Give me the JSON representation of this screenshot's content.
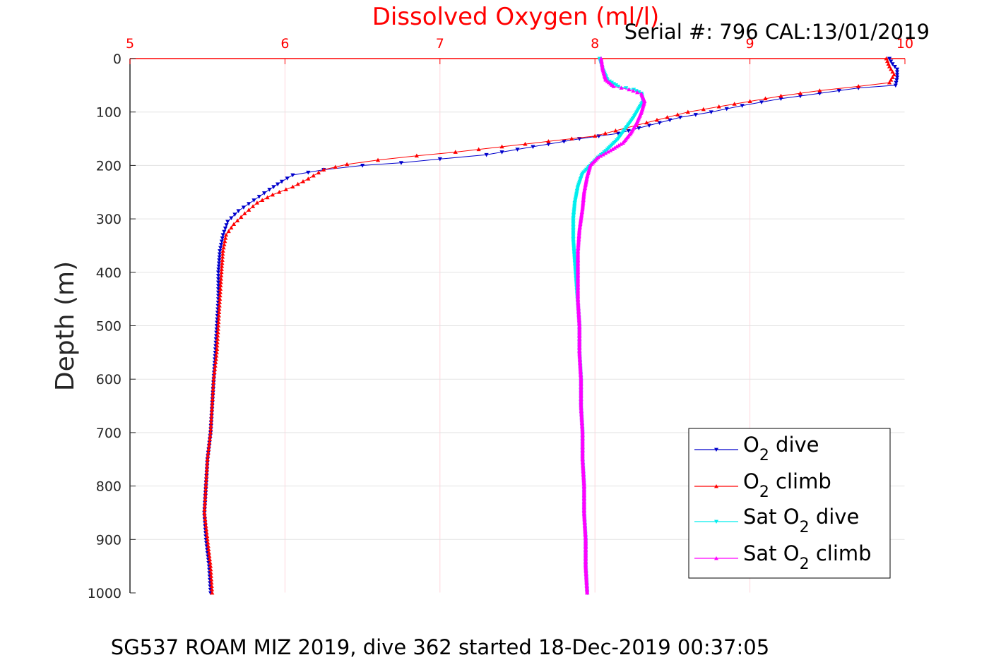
{
  "chart_data": {
    "type": "scatter",
    "title": "Dissolved Oxygen (ml/l)",
    "subtitle": "Serial #: 796  CAL:13/01/2019",
    "ylabel": "Depth (m)",
    "xlim": [
      5,
      10
    ],
    "ylim": [
      0,
      1000
    ],
    "y_reversed": true,
    "x_axis_position": "top",
    "xticks": [
      5,
      6,
      7,
      8,
      9,
      10
    ],
    "yticks": [
      0,
      100,
      200,
      300,
      400,
      500,
      600,
      700,
      800,
      900,
      1000
    ],
    "grid": true,
    "legend_position": "bottom-right",
    "footer": "SG537 ROAM MIZ 2019, dive 362 started 18-Dec-2019 00:37:05",
    "series": [
      {
        "name": "O2 dive",
        "legend": {
          "main": "O",
          "sub": "2",
          "rest": " dive"
        },
        "color": "#0000cc",
        "marker": "triangle-down",
        "points": [
          [
            9.9,
            0
          ],
          [
            9.92,
            10
          ],
          [
            9.95,
            20
          ],
          [
            9.95,
            35
          ],
          [
            9.94,
            50
          ],
          [
            9.7,
            55
          ],
          [
            9.45,
            65
          ],
          [
            9.2,
            75
          ],
          [
            8.95,
            88
          ],
          [
            8.75,
            100
          ],
          [
            8.55,
            110
          ],
          [
            8.35,
            125
          ],
          [
            8.15,
            140
          ],
          [
            7.9,
            150
          ],
          [
            7.6,
            165
          ],
          [
            7.3,
            180
          ],
          [
            7.0,
            188
          ],
          [
            6.75,
            195
          ],
          [
            6.5,
            200
          ],
          [
            6.25,
            208
          ],
          [
            6.05,
            218
          ],
          [
            5.98,
            230
          ],
          [
            5.9,
            245
          ],
          [
            5.8,
            265
          ],
          [
            5.7,
            285
          ],
          [
            5.63,
            305
          ],
          [
            5.6,
            330
          ],
          [
            5.58,
            360
          ],
          [
            5.57,
            400
          ],
          [
            5.57,
            450
          ],
          [
            5.56,
            500
          ],
          [
            5.55,
            550
          ],
          [
            5.54,
            600
          ],
          [
            5.53,
            650
          ],
          [
            5.52,
            700
          ],
          [
            5.5,
            750
          ],
          [
            5.49,
            800
          ],
          [
            5.48,
            850
          ],
          [
            5.49,
            900
          ],
          [
            5.51,
            950
          ],
          [
            5.52,
            1000
          ]
        ]
      },
      {
        "name": "O2 climb",
        "legend": {
          "main": "O",
          "sub": "2",
          "rest": " climb"
        },
        "color": "#ff0000",
        "marker": "triangle-up",
        "points": [
          [
            9.88,
            0
          ],
          [
            9.9,
            15
          ],
          [
            9.93,
            30
          ],
          [
            9.9,
            45
          ],
          [
            9.7,
            52
          ],
          [
            9.45,
            60
          ],
          [
            9.2,
            70
          ],
          [
            9.0,
            80
          ],
          [
            8.8,
            90
          ],
          [
            8.6,
            100
          ],
          [
            8.4,
            115
          ],
          [
            8.2,
            130
          ],
          [
            8.0,
            145
          ],
          [
            7.7,
            155
          ],
          [
            7.4,
            165
          ],
          [
            7.1,
            175
          ],
          [
            6.85,
            182
          ],
          [
            6.6,
            190
          ],
          [
            6.4,
            198
          ],
          [
            6.25,
            208
          ],
          [
            6.15,
            225
          ],
          [
            6.05,
            240
          ],
          [
            5.92,
            255
          ],
          [
            5.82,
            270
          ],
          [
            5.74,
            290
          ],
          [
            5.67,
            310
          ],
          [
            5.62,
            330
          ],
          [
            5.6,
            360
          ],
          [
            5.59,
            400
          ],
          [
            5.58,
            450
          ],
          [
            5.57,
            500
          ],
          [
            5.56,
            550
          ],
          [
            5.54,
            600
          ],
          [
            5.53,
            650
          ],
          [
            5.52,
            700
          ],
          [
            5.5,
            750
          ],
          [
            5.49,
            800
          ],
          [
            5.48,
            850
          ],
          [
            5.5,
            900
          ],
          [
            5.52,
            950
          ],
          [
            5.53,
            1000
          ]
        ]
      },
      {
        "name": "Sat O2 dive",
        "legend": {
          "main": "Sat O",
          "sub": "2",
          "rest": " dive"
        },
        "color": "#00eeee",
        "marker": "triangle-down",
        "points": [
          [
            8.03,
            0
          ],
          [
            8.05,
            20
          ],
          [
            8.08,
            40
          ],
          [
            8.15,
            52
          ],
          [
            8.25,
            58
          ],
          [
            8.3,
            65
          ],
          [
            8.31,
            80
          ],
          [
            8.28,
            95
          ],
          [
            8.25,
            110
          ],
          [
            8.2,
            130
          ],
          [
            8.15,
            150
          ],
          [
            8.08,
            170
          ],
          [
            8.02,
            185
          ],
          [
            7.97,
            200
          ],
          [
            7.92,
            215
          ],
          [
            7.89,
            240
          ],
          [
            7.87,
            270
          ],
          [
            7.86,
            300
          ],
          [
            7.86,
            340
          ],
          [
            7.87,
            380
          ],
          [
            7.88,
            420
          ],
          [
            7.89,
            460
          ],
          [
            7.9,
            500
          ],
          [
            7.9,
            550
          ],
          [
            7.91,
            600
          ],
          [
            7.91,
            650
          ],
          [
            7.92,
            700
          ],
          [
            7.92,
            750
          ],
          [
            7.93,
            800
          ],
          [
            7.93,
            850
          ],
          [
            7.94,
            900
          ],
          [
            7.94,
            950
          ],
          [
            7.95,
            1000
          ]
        ]
      },
      {
        "name": "Sat O2 climb",
        "legend": {
          "main": "Sat O",
          "sub": "2",
          "rest": " climb"
        },
        "color": "#ff00ff",
        "marker": "triangle-up",
        "points": [
          [
            8.04,
            0
          ],
          [
            8.05,
            20
          ],
          [
            8.07,
            40
          ],
          [
            8.12,
            52
          ],
          [
            8.22,
            58
          ],
          [
            8.3,
            66
          ],
          [
            8.32,
            80
          ],
          [
            8.3,
            100
          ],
          [
            8.27,
            120
          ],
          [
            8.23,
            140
          ],
          [
            8.18,
            158
          ],
          [
            8.1,
            172
          ],
          [
            8.02,
            185
          ],
          [
            7.97,
            200
          ],
          [
            7.95,
            220
          ],
          [
            7.93,
            250
          ],
          [
            7.92,
            280
          ],
          [
            7.9,
            320
          ],
          [
            7.89,
            360
          ],
          [
            7.89,
            400
          ],
          [
            7.89,
            450
          ],
          [
            7.9,
            500
          ],
          [
            7.9,
            550
          ],
          [
            7.91,
            600
          ],
          [
            7.91,
            650
          ],
          [
            7.92,
            700
          ],
          [
            7.92,
            750
          ],
          [
            7.93,
            800
          ],
          [
            7.93,
            850
          ],
          [
            7.94,
            900
          ],
          [
            7.94,
            950
          ],
          [
            7.95,
            1000
          ]
        ]
      }
    ]
  }
}
